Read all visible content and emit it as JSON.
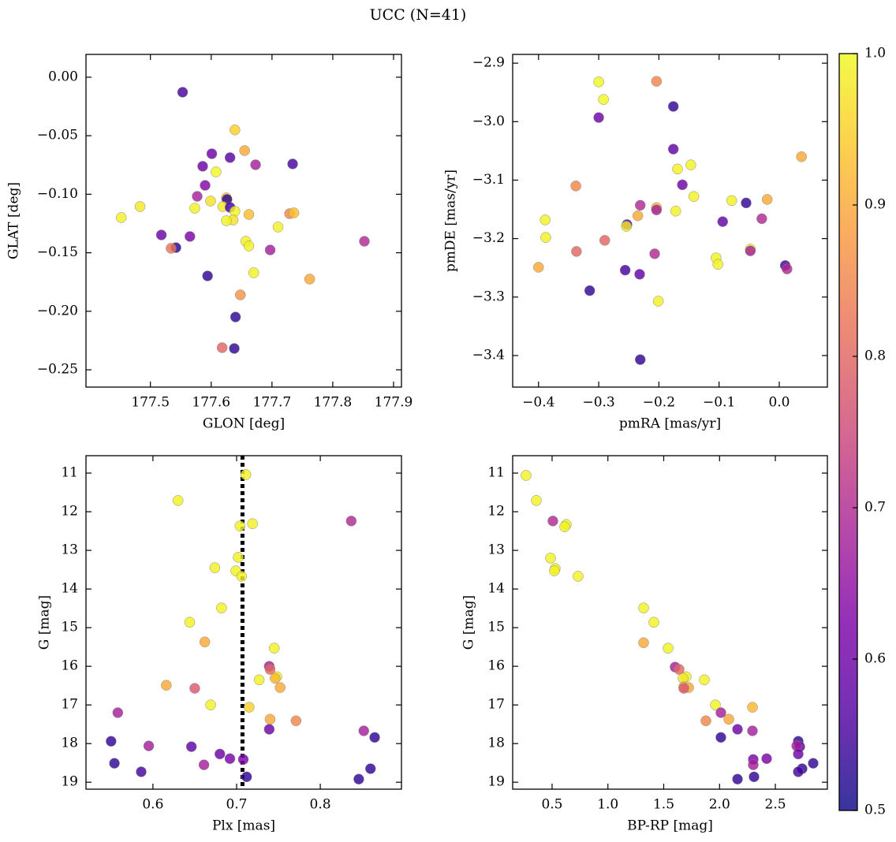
{
  "title": "UCC (N=41)",
  "colorbar": {
    "colormap": "plasma",
    "lim": [
      0.5,
      1.0
    ],
    "ticks": [
      0.5,
      0.6,
      0.7,
      0.8,
      0.9,
      {
        "value": 1,
        "label": "1.0"
      }
    ]
  },
  "chart_data": [
    {
      "type": "scatter",
      "xlabel": "GLON [deg]",
      "ylabel": "GLAT [deg]",
      "xlim": [
        177.394,
        177.913
      ],
      "ylim": [
        -0.2648,
        0.0195
      ],
      "xticks": [
        177.5,
        177.6,
        177.7,
        177.8,
        177.9
      ],
      "yticks": [
        {
          "value": 0,
          "label": "0.00"
        },
        {
          "value": -0.05,
          "label": "−0.05"
        },
        {
          "value": -0.1,
          "label": "−0.10"
        },
        {
          "value": -0.15,
          "label": "−0.15"
        },
        {
          "value": -0.2,
          "label": "−0.20"
        },
        {
          "value": -0.25,
          "label": "−0.25"
        }
      ],
      "x": [
        177.553,
        177.639,
        177.655,
        177.601,
        177.631,
        177.673,
        177.734,
        177.586,
        177.608,
        177.59,
        177.577,
        177.625,
        177.626,
        177.599,
        177.619,
        177.631,
        177.573,
        177.483,
        177.452,
        177.662,
        177.639,
        177.636,
        177.729,
        177.736,
        177.71,
        177.518,
        177.565,
        177.657,
        177.662,
        177.542,
        177.534,
        177.697,
        177.852,
        177.67,
        177.594,
        177.762,
        177.648,
        177.64,
        177.618,
        177.638,
        177.625
      ],
      "values": [
        -0.0128,
        -0.045,
        -0.0627,
        -0.0654,
        -0.0687,
        -0.0748,
        -0.0741,
        -0.0761,
        -0.0809,
        -0.0924,
        -0.1018,
        -0.1031,
        -0.1044,
        -0.1058,
        -0.1105,
        -0.1112,
        -0.1119,
        -0.1105,
        -0.1199,
        -0.1173,
        -0.1146,
        -0.122,
        -0.1166,
        -0.1159,
        -0.128,
        -0.1348,
        -0.1361,
        -0.1402,
        -0.1442,
        -0.1456,
        -0.1462,
        -0.1476,
        -0.1402,
        -0.1671,
        -0.1698,
        -0.1725,
        -0.186,
        -0.2049,
        -0.2311,
        -0.2318,
        -0.1226
      ],
      "color_values": [
        0.55,
        0.95,
        0.9,
        0.6,
        0.57,
        0.68,
        0.55,
        0.6,
        1.0,
        0.63,
        0.68,
        0.93,
        0.52,
        0.97,
        0.98,
        0.55,
        0.99,
        0.98,
        0.99,
        0.93,
        0.99,
        0.97,
        0.85,
        0.93,
        0.99,
        0.6,
        0.62,
        0.99,
        0.99,
        0.52,
        0.82,
        0.68,
        0.7,
        0.99,
        0.53,
        0.9,
        0.87,
        0.53,
        0.8,
        0.53,
        0.99
      ]
    },
    {
      "type": "scatter",
      "xlabel": "pmRA [mas/yr]",
      "ylabel": "pmDE [mas/yr]",
      "xlim": [
        -0.443,
        0.08
      ],
      "ylim": [
        -3.454,
        -2.885
      ],
      "xticks": [
        {
          "value": -0.4,
          "label": "−0.4"
        },
        {
          "value": -0.3,
          "label": "−0.3"
        },
        {
          "value": -0.2,
          "label": "−0.2"
        },
        {
          "value": -0.1,
          "label": "−0.1"
        },
        {
          "value": 0,
          "label": "0.0"
        }
      ],
      "yticks": [
        {
          "value": -2.9,
          "label": "−2.9"
        },
        {
          "value": -3.0,
          "label": "−3.0"
        },
        {
          "value": -3.1,
          "label": "−3.1"
        },
        {
          "value": -3.2,
          "label": "−3.2"
        },
        {
          "value": -3.3,
          "label": "−3.3"
        },
        {
          "value": -3.4,
          "label": "−3.4"
        }
      ],
      "x": [
        -0.3,
        -0.292,
        -0.204,
        -0.176,
        -0.3,
        -0.176,
        -0.169,
        -0.147,
        0.037,
        -0.338,
        -0.161,
        -0.142,
        -0.079,
        -0.02,
        -0.231,
        -0.204,
        -0.204,
        -0.172,
        -0.055,
        -0.235,
        -0.029,
        -0.389,
        -0.094,
        -0.29,
        -0.253,
        -0.254,
        -0.388,
        -0.337,
        -0.048,
        -0.048,
        -0.207,
        -0.105,
        -0.102,
        -0.4,
        0.01,
        0.013,
        -0.256,
        -0.232,
        -0.201,
        -0.315,
        -0.231
      ],
      "values": [
        -2.932,
        -2.962,
        -2.931,
        -2.974,
        -2.993,
        -3.047,
        -3.081,
        -3.074,
        -3.06,
        -3.11,
        -3.108,
        -3.128,
        -3.135,
        -3.133,
        -3.143,
        -3.147,
        -3.151,
        -3.153,
        -3.139,
        -3.161,
        -3.166,
        -3.168,
        -3.171,
        -3.203,
        -3.176,
        -3.179,
        -3.198,
        -3.222,
        -3.218,
        -3.221,
        -3.226,
        -3.233,
        -3.244,
        -3.249,
        -3.246,
        -3.252,
        -3.254,
        -3.261,
        -3.307,
        -3.289,
        -3.407
      ],
      "color_values": [
        1.0,
        1.0,
        0.85,
        0.53,
        0.6,
        0.58,
        0.99,
        0.99,
        0.9,
        0.85,
        0.6,
        0.99,
        0.99,
        0.9,
        0.7,
        0.92,
        0.68,
        0.99,
        0.53,
        0.9,
        0.7,
        0.99,
        0.58,
        0.8,
        0.55,
        0.98,
        0.99,
        0.8,
        0.99,
        0.68,
        0.7,
        0.99,
        0.99,
        0.9,
        0.55,
        0.7,
        0.55,
        0.58,
        0.99,
        0.53,
        0.53
      ]
    },
    {
      "type": "scatter",
      "xlabel": "Plx [mas]",
      "ylabel": "G [mag]",
      "xlim": [
        0.52,
        0.897
      ],
      "ylim": [
        19.18,
        10.55
      ],
      "xticks": [
        0.6,
        0.7,
        0.8
      ],
      "yticks": [
        11,
        12,
        13,
        14,
        15,
        16,
        17,
        18,
        19
      ],
      "vline": 0.707,
      "x": [
        0.711,
        0.63,
        0.719,
        0.704,
        0.837,
        0.702,
        0.674,
        0.699,
        0.706,
        0.682,
        0.644,
        0.662,
        0.745,
        0.739,
        0.74,
        0.748,
        0.746,
        0.727,
        0.616,
        0.65,
        0.752,
        0.669,
        0.715,
        0.558,
        0.74,
        0.771,
        0.739,
        0.852,
        0.865,
        0.55,
        0.646,
        0.595,
        0.68,
        0.692,
        0.708,
        0.554,
        0.661,
        0.86,
        0.586,
        0.712,
        0.846
      ],
      "values": [
        11.04,
        11.71,
        12.31,
        12.37,
        12.24,
        13.18,
        13.45,
        13.53,
        13.67,
        14.49,
        14.86,
        15.37,
        15.53,
        16.0,
        16.08,
        16.27,
        16.31,
        16.35,
        16.49,
        16.57,
        16.55,
        17.0,
        17.06,
        17.2,
        17.37,
        17.41,
        17.63,
        17.67,
        17.84,
        17.94,
        18.08,
        18.06,
        18.27,
        18.39,
        18.41,
        18.51,
        18.55,
        18.65,
        18.73,
        18.86,
        18.92
      ],
      "color_values": [
        0.99,
        0.99,
        0.99,
        0.99,
        0.7,
        0.99,
        0.99,
        0.99,
        0.99,
        0.99,
        0.99,
        0.9,
        0.99,
        0.68,
        0.8,
        0.99,
        0.92,
        0.99,
        0.9,
        0.78,
        0.9,
        0.99,
        0.95,
        0.68,
        0.9,
        0.85,
        0.6,
        0.68,
        0.53,
        0.53,
        0.58,
        0.68,
        0.6,
        0.62,
        0.62,
        0.53,
        0.68,
        0.53,
        0.55,
        0.53,
        0.53
      ]
    },
    {
      "type": "scatter",
      "xlabel": "BP-RP [mag]",
      "ylabel": "G [mag]",
      "xlim": [
        0.147,
        2.966
      ],
      "ylim": [
        19.18,
        10.55
      ],
      "xticks": [
        0.5,
        {
          "value": 1,
          "label": "1.0"
        },
        1.5,
        {
          "value": 2,
          "label": "2.0"
        },
        2.5
      ],
      "yticks": [
        11,
        12,
        13,
        14,
        15,
        16,
        17,
        18,
        19
      ],
      "x": [
        0.267,
        0.359,
        0.507,
        0.627,
        0.613,
        0.486,
        0.528,
        0.521,
        0.733,
        1.32,
        1.412,
        1.32,
        1.539,
        1.602,
        1.638,
        1.701,
        1.673,
        1.864,
        1.68,
        1.723,
        1.68,
        1.963,
        2.295,
        2.012,
        2.083,
        1.878,
        2.161,
        2.295,
        2.012,
        2.705,
        2.719,
        2.691,
        2.705,
        2.422,
        2.302,
        2.839,
        2.302,
        2.74,
        2.705,
        2.309,
        2.161
      ],
      "values": [
        11.06,
        11.71,
        12.24,
        12.33,
        12.39,
        13.2,
        13.47,
        13.53,
        13.67,
        14.49,
        14.86,
        15.39,
        15.53,
        16.02,
        16.08,
        16.27,
        16.31,
        16.35,
        16.53,
        16.55,
        16.57,
        17.0,
        17.06,
        17.2,
        17.37,
        17.41,
        17.63,
        17.67,
        17.84,
        17.94,
        18.08,
        18.06,
        18.27,
        18.39,
        18.41,
        18.51,
        18.55,
        18.65,
        18.73,
        18.86,
        18.92
      ],
      "color_values": [
        0.99,
        0.99,
        0.7,
        0.99,
        0.99,
        0.99,
        0.99,
        0.99,
        0.99,
        0.99,
        0.99,
        0.9,
        0.99,
        0.68,
        0.8,
        0.99,
        0.98,
        0.99,
        0.9,
        0.9,
        0.78,
        0.99,
        0.92,
        0.68,
        0.9,
        0.85,
        0.6,
        0.68,
        0.53,
        0.53,
        0.58,
        0.68,
        0.6,
        0.62,
        0.62,
        0.53,
        0.68,
        0.53,
        0.55,
        0.53,
        0.53
      ]
    }
  ]
}
